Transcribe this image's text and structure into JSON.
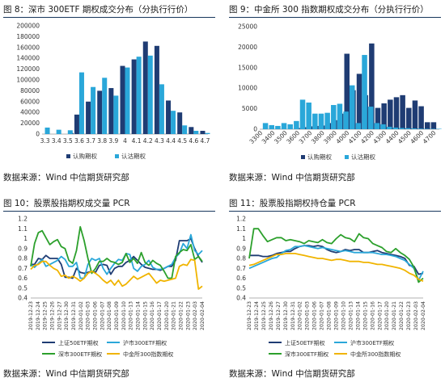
{
  "panels": [
    {
      "title": "图 8：深市 300ETF 期权成交分布（分执行行价）",
      "source": "数据来源：Wind  中信期货研究部"
    },
    {
      "title": "图 9：中金所 300 指数期权成交分布（分执行行价）",
      "source": "数据来源：Wind  中信期货研究部"
    },
    {
      "title": "图 10：股票股指期权成交量 PCR",
      "source": "数据来源：Wind  中信期货研究部"
    },
    {
      "title": "图 11：股票股指期权持仓量 PCR",
      "source": "数据来源：Wind  中信期货研究部"
    }
  ],
  "colors": {
    "dark": "#1f3c73",
    "light": "#2aa7d9",
    "green": "#2ca02c",
    "yellow": "#f0b400",
    "title_rule": "#16365c"
  },
  "chart_data": [
    {
      "type": "bar",
      "title": "",
      "categories": [
        "3.3",
        "3.35",
        "3.4",
        "3.45",
        "3.5",
        "3.55",
        "3.6",
        "3.65",
        "3.7",
        "3.75",
        "3.8",
        "3.85",
        "3.9",
        "3.95",
        "4",
        "4.05",
        "4.1",
        "4.15",
        "4.2",
        "4.25",
        "4.3",
        "4.35",
        "4.4",
        "4.45",
        "4.5",
        "4.55",
        "4.6",
        "4.65",
        "4.7"
      ],
      "tick_labels": [
        "3.3",
        "3.4",
        "3.5",
        "3.6",
        "3.7",
        "3.8",
        "3.9",
        "4",
        "4.1",
        "4.2",
        "4.3",
        "4.4",
        "4.5",
        "4.6",
        "4.7"
      ],
      "series": [
        {
          "name": "认购期权",
          "values": [
            0,
            0,
            0,
            0,
            0,
            2000,
            36000,
            0,
            60000,
            0,
            80000,
            0,
            85000,
            0,
            126000,
            0,
            138000,
            0,
            171000,
            0,
            163000,
            0,
            62000,
            0,
            40000,
            0,
            13000,
            0,
            6000
          ]
        },
        {
          "name": "认沽期权",
          "values": [
            12000,
            0,
            8000,
            0,
            7000,
            0,
            114000,
            0,
            87000,
            0,
            104000,
            0,
            71000,
            0,
            123000,
            0,
            143000,
            0,
            145000,
            0,
            92000,
            0,
            43000,
            0,
            16000,
            0,
            6000,
            0,
            2000
          ]
        }
      ],
      "ylim": [
        0,
        200000
      ],
      "yticks": [
        "0",
        "20000",
        "40000",
        "60000",
        "80000",
        "100000",
        "120000",
        "140000",
        "160000",
        "180000",
        "200000"
      ],
      "legend": "bottom"
    },
    {
      "type": "bar",
      "title": "",
      "categories": [
        "3300",
        "3350",
        "3400",
        "3450",
        "3500",
        "3550",
        "3600",
        "3650",
        "3700",
        "3750",
        "3800",
        "3850",
        "3900",
        "3950",
        "4000",
        "4050",
        "4100",
        "4150",
        "4200",
        "4250",
        "4300",
        "4350",
        "4400",
        "4450",
        "4500",
        "4550",
        "4600",
        "4650",
        "4700"
      ],
      "tick_labels": [
        "3300",
        "3400",
        "3500",
        "3600",
        "3700",
        "3800",
        "3900",
        "4000",
        "4100",
        "4200",
        "4300",
        "4400",
        "4500",
        "4600",
        "4700"
      ],
      "series": [
        {
          "name": "认购期权",
          "values": [
            0,
            0,
            0,
            0,
            0,
            0,
            300,
            500,
            700,
            800,
            900,
            1500,
            2200,
            3800,
            18400,
            9500,
            13500,
            8300,
            20900,
            5200,
            6300,
            7200,
            7800,
            8300,
            5200,
            7000,
            5600,
            1700,
            1700
          ]
        },
        {
          "name": "认沽期权",
          "values": [
            1500,
            1000,
            800,
            1500,
            1200,
            2000,
            7200,
            6500,
            3800,
            3800,
            4000,
            5900,
            6200,
            4300,
            10700,
            1500,
            18100,
            5500,
            1500,
            1200,
            600,
            400,
            300,
            250,
            200,
            150,
            100,
            100,
            100
          ]
        }
      ],
      "ylim": [
        0,
        25000
      ],
      "yticks": [
        "0",
        "5000",
        "10000",
        "15000",
        "20000",
        "25000"
      ],
      "legend": "bottom"
    },
    {
      "type": "line",
      "title": "",
      "x_tick_labels": [
        "2019-12-23",
        "2019-12-24",
        "2019-12-25",
        "2019-12-26",
        "2019-12-27",
        "2019-12-30",
        "2019-12-31",
        "2020-01-02",
        "2020-01-03",
        "2020-01-06",
        "2020-01-07",
        "2020-01-08",
        "2020-01-09",
        "2020-01-10",
        "2020-01-13",
        "2020-01-14",
        "2020-01-15",
        "2020-01-16",
        "2020-01-17",
        "2020-01-20",
        "2020-01-21",
        "2020-01-22",
        "2020-01-23",
        "2020-02-03",
        "2020-02-04"
      ],
      "series": [
        {
          "name": "上证50ETF期权",
          "values": [
            0.74,
            0.74,
            0.8,
            0.79,
            0.83,
            0.8,
            0.8,
            0.8,
            0.74,
            0.61,
            0.61,
            0.6,
            0.7,
            0.66,
            0.65,
            0.66,
            0.67,
            0.66,
            0.73,
            0.74,
            0.73,
            0.64,
            0.7,
            0.72,
            0.72,
            0.76,
            0.78,
            0.82,
            0.78,
            0.74,
            0.71,
            0.7,
            0.69,
            0.69,
            0.68,
            0.7,
            0.72,
            0.72,
            0.78,
            0.98,
            0.98,
            0.98,
            1.0,
            0.9,
            0.82,
            0.76
          ]
        },
        {
          "name": "沪市300ETF期权",
          "values": [
            0.74,
            0.71,
            0.75,
            0.79,
            0.72,
            0.74,
            0.76,
            0.78,
            0.82,
            0.79,
            0.72,
            0.72,
            0.76,
            0.6,
            0.6,
            0.74,
            0.8,
            0.78,
            0.8,
            0.7,
            0.64,
            0.7,
            0.75,
            0.79,
            0.78,
            0.85,
            0.84,
            0.7,
            0.67,
            0.72,
            0.74,
            0.78,
            0.71,
            0.69,
            0.69,
            0.7,
            0.72,
            0.74,
            0.81,
            0.85,
            0.95,
            0.9,
            1.04,
            0.88,
            0.84,
            0.88
          ]
        },
        {
          "name": "深市300ETF期权",
          "values": [
            0.72,
            0.95,
            1.06,
            1.08,
            1.01,
            0.94,
            0.97,
            0.99,
            0.92,
            0.9,
            0.78,
            0.75,
            0.88,
            1.12,
            0.98,
            0.8,
            0.65,
            0.7,
            0.77,
            0.77,
            0.8,
            0.77,
            0.76,
            0.74,
            0.76,
            0.85,
            0.76,
            0.8,
            0.75,
            0.86,
            0.76,
            0.73,
            0.78,
            0.75,
            0.73,
            0.67,
            0.6,
            0.6,
            0.82,
            0.86,
            0.89,
            0.88,
            0.94,
            0.79,
            0.82,
            0.77
          ]
        },
        {
          "name": "中金所300指数期权",
          "values": [
            0.69,
            0.73,
            0.74,
            0.77,
            0.77,
            0.73,
            0.7,
            0.68,
            0.62,
            0.63,
            0.6,
            0.62,
            0.6,
            0.57,
            0.6,
            0.65,
            0.67,
            0.65,
            0.62,
            0.58,
            0.55,
            0.58,
            0.53,
            0.58,
            0.52,
            0.54,
            0.58,
            0.62,
            0.59,
            0.61,
            0.63,
            0.65,
            0.6,
            0.55,
            0.58,
            0.57,
            0.58,
            0.59,
            0.6,
            0.72,
            0.74,
            0.73,
            0.79,
            0.78,
            0.49,
            0.52
          ]
        }
      ],
      "ylim": [
        0.4,
        1.2
      ],
      "yticks": [
        "0.4",
        "0.5",
        "0.6",
        "0.7",
        "0.8",
        "0.9",
        "1",
        "1.1",
        "1.2"
      ],
      "legend": "bottom"
    },
    {
      "type": "line",
      "title": "",
      "x_tick_labels": [
        "2019-12-23",
        "2019-12-24",
        "2019-12-25",
        "2019-12-26",
        "2019-12-27",
        "2019-12-30",
        "2019-12-31",
        "2020-01-02",
        "2020-01-03",
        "2020-01-06",
        "2020-01-07",
        "2020-01-08",
        "2020-01-09",
        "2020-01-10",
        "2020-01-13",
        "2020-01-14",
        "2020-01-15",
        "2020-01-16",
        "2020-01-17",
        "2020-01-20",
        "2020-01-21",
        "2020-01-22",
        "2020-01-23",
        "2020-02-03",
        "2020-02-04"
      ],
      "series": [
        {
          "name": "上证50ETF期权",
          "values": [
            0.83,
            0.83,
            0.83,
            0.82,
            0.82,
            0.83,
            0.85,
            0.86,
            0.87,
            0.87,
            0.9,
            0.92,
            0.93,
            0.93,
            0.92,
            0.93,
            0.92,
            0.89,
            0.87,
            0.86,
            0.87,
            0.89,
            0.88,
            0.89,
            0.89,
            0.86,
            0.86,
            0.87,
            0.88,
            0.86,
            0.85,
            0.84,
            0.83,
            0.82,
            0.8,
            0.73,
            0.72,
            0.64,
            0.65
          ]
        },
        {
          "name": "沪市300ETF期权",
          "values": [
            0.7,
            0.72,
            0.74,
            0.76,
            0.78,
            0.8,
            0.81,
            0.85,
            0.88,
            0.89,
            0.92,
            0.92,
            0.93,
            0.92,
            0.91,
            0.9,
            0.91,
            0.9,
            0.89,
            0.88,
            0.87,
            0.88,
            0.87,
            0.86,
            0.86,
            0.86,
            0.86,
            0.86,
            0.85,
            0.84,
            0.84,
            0.83,
            0.82,
            0.8,
            0.78,
            0.74,
            0.7,
            0.58,
            0.67
          ]
        },
        {
          "name": "深市300ETF期权",
          "values": [
            0.8,
            1.1,
            1.1,
            1.03,
            0.97,
            0.99,
            1.01,
            1.01,
            0.98,
            0.99,
            0.98,
            0.97,
            0.95,
            0.98,
            0.97,
            0.96,
            0.99,
            0.96,
            0.95,
            1.0,
            1.04,
            1.01,
            1.0,
            0.97,
            1.05,
            1.01,
            1.0,
            0.95,
            0.93,
            0.91,
            0.87,
            0.86,
            0.9,
            0.86,
            0.83,
            0.79,
            0.71,
            0.56,
            0.6
          ]
        },
        {
          "name": "中金所300指数期权",
          "values": [
            0.73,
            0.74,
            0.76,
            0.78,
            0.8,
            0.82,
            0.84,
            0.84,
            0.85,
            0.85,
            0.85,
            0.84,
            0.83,
            0.82,
            0.81,
            0.8,
            0.8,
            0.79,
            0.78,
            0.79,
            0.79,
            0.78,
            0.77,
            0.77,
            0.77,
            0.76,
            0.76,
            0.75,
            0.74,
            0.74,
            0.73,
            0.72,
            0.71,
            0.7,
            0.68,
            0.65,
            0.63,
            0.59,
            0.57
          ]
        }
      ],
      "ylim": [
        0.4,
        1.2
      ],
      "yticks": [
        "0.4",
        "0.5",
        "0.6",
        "0.7",
        "0.8",
        "0.9",
        "1",
        "1.1",
        "1.2"
      ],
      "legend": "bottom"
    }
  ]
}
